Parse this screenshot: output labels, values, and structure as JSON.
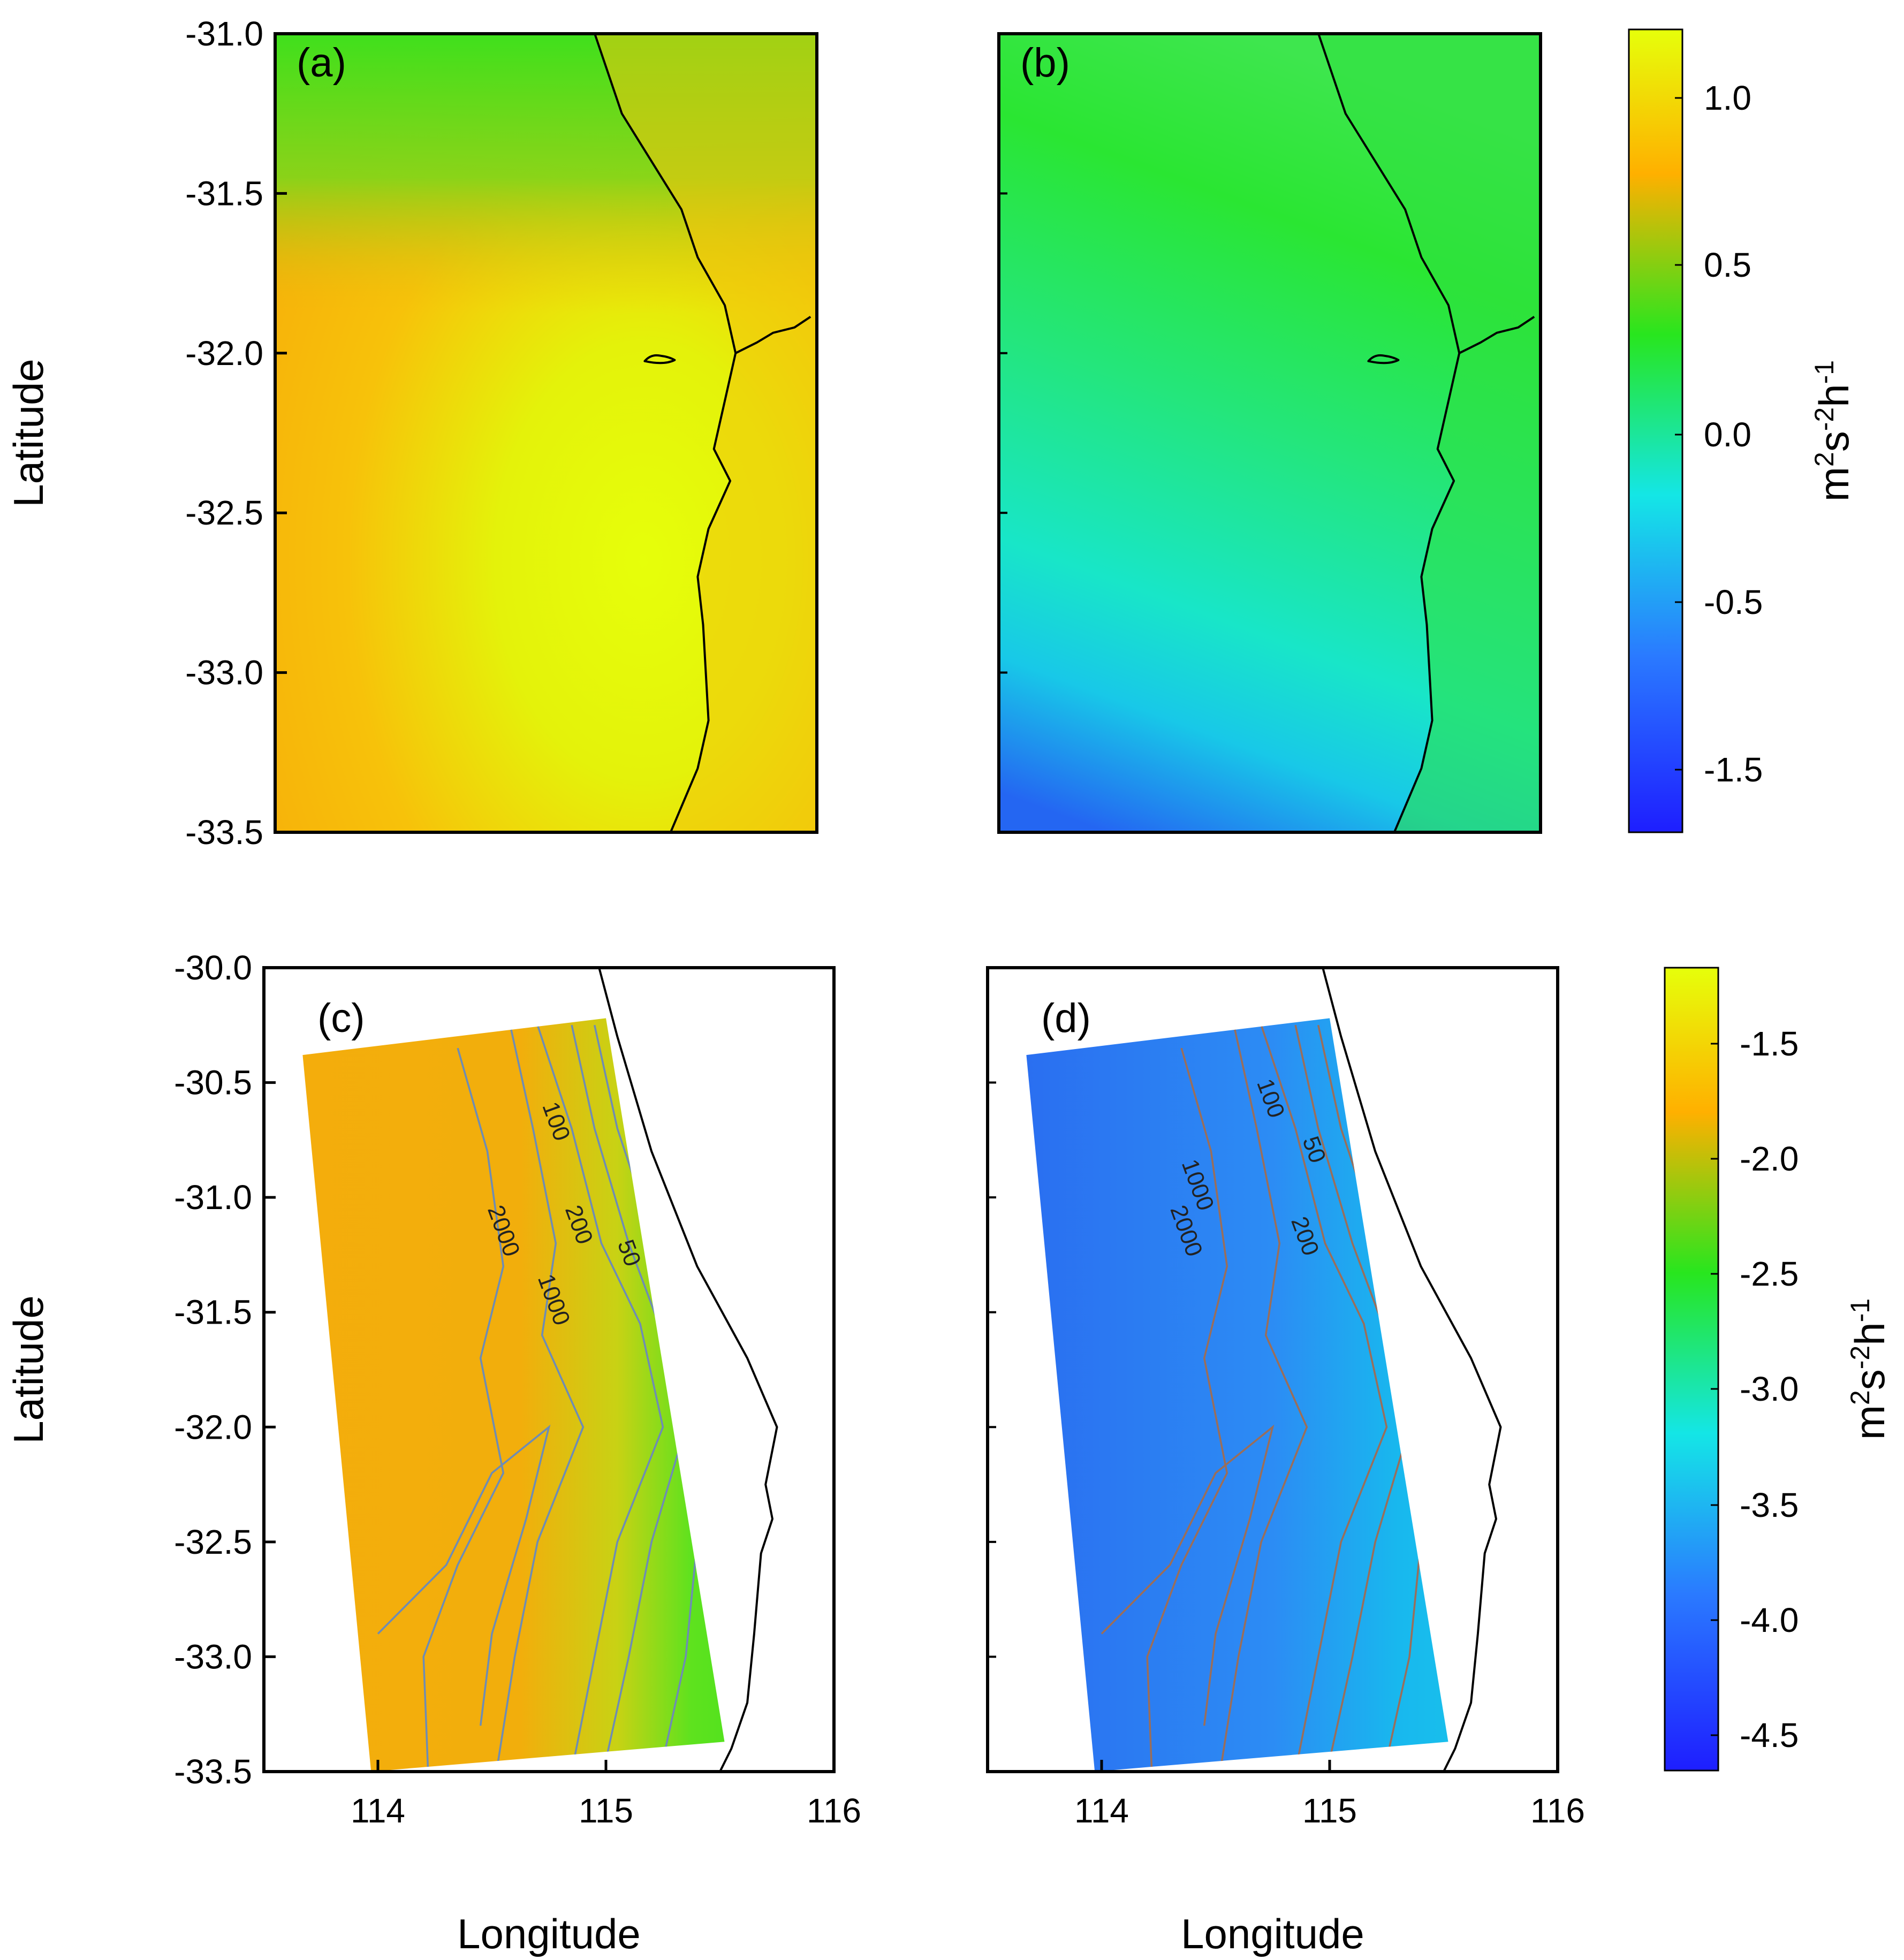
{
  "chart_data": [
    {
      "type": "heatmap",
      "panel_label": "(a)",
      "ylabel": "Latitude",
      "xlabel": "",
      "ylim": [
        -33.5,
        -31.0
      ],
      "y_ticks": [
        "-31.0",
        "-31.5",
        "-32.0",
        "-32.5",
        "-33.0",
        "-33.5"
      ],
      "x_ticks": [],
      "field_estimate": "maximum ~1.2 near coast at -32.2 to -33.5, decreasing to ~0.6 offshore west and ~0.4 in the north"
    },
    {
      "type": "heatmap",
      "panel_label": "(b)",
      "ylim": [
        -33.5,
        -31.0
      ],
      "y_ticks": [],
      "x_ticks": [],
      "field_estimate": "~0.5 in the north, ~0.0 in the middle, down to ~-1.5 in the southwest corner"
    },
    {
      "type": "heatmap",
      "panel_label": "(c)",
      "ylabel": "Latitude",
      "xlabel": "Longitude",
      "ylim": [
        -33.5,
        -30.0
      ],
      "xlim": [
        113.5,
        116.0
      ],
      "y_ticks": [
        "-30.0",
        "-30.5",
        "-31.0",
        "-31.5",
        "-32.0",
        "-32.5",
        "-33.0",
        "-33.5"
      ],
      "x_ticks": [
        "114",
        "115",
        "116"
      ],
      "contour_labels": [
        "100",
        "200",
        "50",
        "2000",
        "1000"
      ],
      "field_estimate": "~-1.7 offshore, ~-2.3 to -2.5 on the shelf near the coast"
    },
    {
      "type": "heatmap",
      "panel_label": "(d)",
      "xlabel": "Longitude",
      "ylim": [
        -33.5,
        -30.0
      ],
      "xlim": [
        113.5,
        116.0
      ],
      "y_ticks": [],
      "x_ticks": [
        "114",
        "115",
        "116"
      ],
      "contour_labels": [
        "100",
        "50",
        "1000",
        "2000",
        "200"
      ],
      "field_estimate": "~-4.0 to -4.5 offshore, ~-3.3 to -3.6 near the coast"
    }
  ],
  "colorbars": [
    {
      "ticks": [
        "1.0",
        "0.5",
        "0.0",
        "-0.5",
        "-1.5"
      ],
      "units": {
        "m": "m",
        "e1": "2",
        "s": "s",
        "e2": "-2",
        "h": "h",
        "e3": "-1"
      }
    },
    {
      "ticks": [
        "-1.5",
        "-2.0",
        "-2.5",
        "-3.0",
        "-3.5",
        "-4.0",
        "-4.5"
      ],
      "units": {
        "m": "m",
        "e1": "2",
        "s": "s",
        "e2": "-2",
        "h": "h",
        "e3": "-1"
      }
    }
  ],
  "colors": {
    "yellow": "#e6ff0a",
    "orange": "#ffb000",
    "green": "#28e61e",
    "cyan": "#14e6e6",
    "blue": "#2850ff",
    "contour_c": "#6e8cb4",
    "contour_d": "#9a6e5a"
  }
}
